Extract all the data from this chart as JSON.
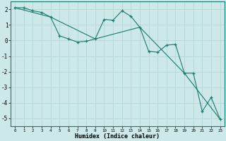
{
  "xlabel": "Humidex (Indice chaleur)",
  "ylabel": "",
  "bg_color": "#cde8e8",
  "grid_color": "#b8d8d8",
  "line_color": "#1a7a6e",
  "xlim": [
    -0.5,
    23.5
  ],
  "ylim": [
    -5.5,
    2.5
  ],
  "yticks": [
    2,
    1,
    0,
    -1,
    -2,
    -3,
    -4,
    -5
  ],
  "xticks": [
    0,
    1,
    2,
    3,
    4,
    5,
    6,
    7,
    8,
    9,
    10,
    11,
    12,
    13,
    14,
    15,
    16,
    17,
    18,
    19,
    20,
    21,
    22,
    23
  ],
  "series": [
    [
      0,
      2.1
    ],
    [
      1,
      2.1
    ],
    [
      2,
      1.9
    ],
    [
      3,
      1.8
    ],
    [
      4,
      1.5
    ],
    [
      5,
      0.3
    ],
    [
      6,
      0.1
    ],
    [
      7,
      -0.1
    ],
    [
      8,
      -0.05
    ],
    [
      9,
      0.1
    ],
    [
      10,
      1.35
    ],
    [
      11,
      1.3
    ],
    [
      12,
      1.9
    ],
    [
      13,
      1.55
    ],
    [
      14,
      0.85
    ],
    [
      15,
      -0.7
    ],
    [
      16,
      -0.75
    ],
    [
      17,
      -0.3
    ],
    [
      18,
      -0.25
    ],
    [
      19,
      -2.1
    ],
    [
      20,
      -2.1
    ],
    [
      21,
      -4.55
    ],
    [
      22,
      -3.65
    ],
    [
      23,
      -5.05
    ]
  ],
  "series2": [
    [
      0,
      2.1
    ],
    [
      4,
      1.5
    ],
    [
      9,
      0.1
    ],
    [
      14,
      0.85
    ],
    [
      19,
      -2.1
    ],
    [
      23,
      -5.05
    ]
  ]
}
